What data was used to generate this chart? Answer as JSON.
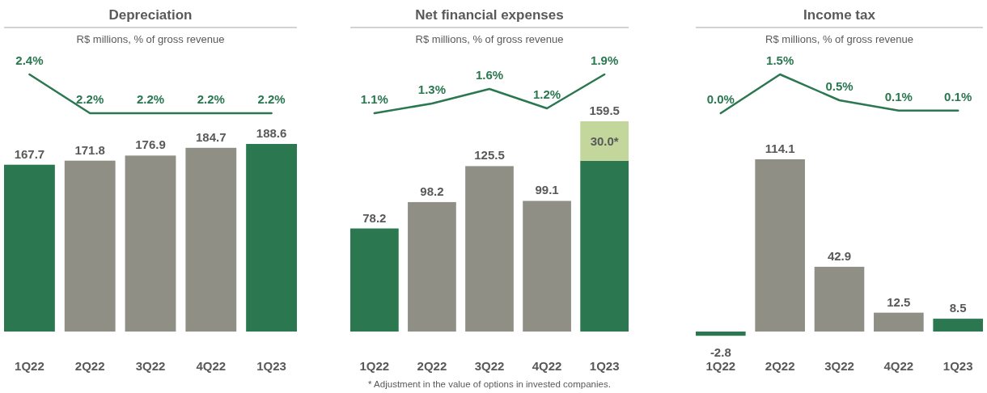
{
  "chart_data": [
    {
      "type": "line",
      "title": "Depreciation",
      "subtitle": "R$ millions, % of gross revenue",
      "categories": [
        null,
        null,
        null,
        null,
        null
      ],
      "series": [
        {
          "color": "#2a7750",
          "values": [
            2.4,
            2.2,
            2.2,
            2.2,
            2.2
          ],
          "value_labels": [
            "2.4%",
            "2.2%",
            "2.2%",
            "2.2%",
            "2.2%"
          ]
        }
      ]
    },
    {
      "type": "bar",
      "categories": [
        "1Q22",
        "2Q22",
        "3Q22",
        "4Q22",
        "1Q23"
      ],
      "tick_labels": "x",
      "series": [
        {
          "colors": [
            "#2a7750",
            "#8f8f85",
            "#8f8f85",
            "#8f8f85",
            "#2a7750"
          ],
          "values": [
            167.7,
            171.8,
            176.9,
            184.7,
            188.6
          ],
          "value_labels": [
            "167.7",
            "171.8",
            "176.9",
            "184.7",
            "188.6"
          ]
        }
      ]
    },
    {
      "type": "line",
      "title": "Net financial expenses",
      "subtitle": "R$ millions, % of gross revenue",
      "categories": [
        null,
        null,
        null,
        null,
        null
      ],
      "series": [
        {
          "color": "#2a7750",
          "values": [
            1.1,
            1.3,
            1.6,
            1.2,
            1.9
          ],
          "value_labels": [
            "1.1%",
            "1.3%",
            "1.6%",
            "1.2%",
            "1.9%"
          ]
        }
      ]
    },
    {
      "type": "bar",
      "categories": [
        "1Q22",
        "2Q22",
        "3Q22",
        "4Q22",
        "1Q23"
      ],
      "tick_labels": "x",
      "stacked": true,
      "totals": [
        null,
        null,
        null,
        null,
        "159.5"
      ],
      "annotations": [
        "* Adjustment in the value of options in invested companies."
      ],
      "series": [
        {
          "colors": [
            "#2a7750",
            "#8f8f85",
            "#8f8f85",
            "#8f8f85",
            "#2a7750"
          ],
          "values": [
            78.2,
            98.2,
            125.5,
            99.1,
            129.5
          ],
          "value_labels": [
            "78.2",
            "98.2",
            "125.5",
            "99.1",
            null
          ]
        },
        {
          "color": "#c3d69b",
          "values": [
            null,
            null,
            null,
            null,
            30.0
          ],
          "value_labels": [
            null,
            null,
            null,
            null,
            "30.0*"
          ]
        }
      ]
    },
    {
      "type": "line",
      "title": "Income tax",
      "subtitle": "R$ millions, % of gross revenue",
      "categories": [
        null,
        null,
        null,
        null,
        null
      ],
      "series": [
        {
          "color": "#2a7750",
          "values": [
            0.0,
            1.5,
            0.5,
            0.1,
            0.1
          ],
          "value_labels": [
            "0.0%",
            "1.5%",
            "0.5%",
            "0.1%",
            "0.1%"
          ]
        }
      ]
    },
    {
      "type": "bar",
      "categories": [
        "1Q22",
        "2Q22",
        "3Q22",
        "4Q22",
        "1Q23"
      ],
      "tick_labels": "x",
      "series": [
        {
          "colors": [
            "#2a7750",
            "#8f8f85",
            "#8f8f85",
            "#8f8f85",
            "#2a7750"
          ],
          "values": [
            -2.8,
            114.1,
            42.9,
            12.5,
            8.5
          ],
          "value_labels": [
            "-2.8",
            "114.1",
            "42.9",
            "12.5",
            "8.5"
          ]
        }
      ]
    }
  ]
}
